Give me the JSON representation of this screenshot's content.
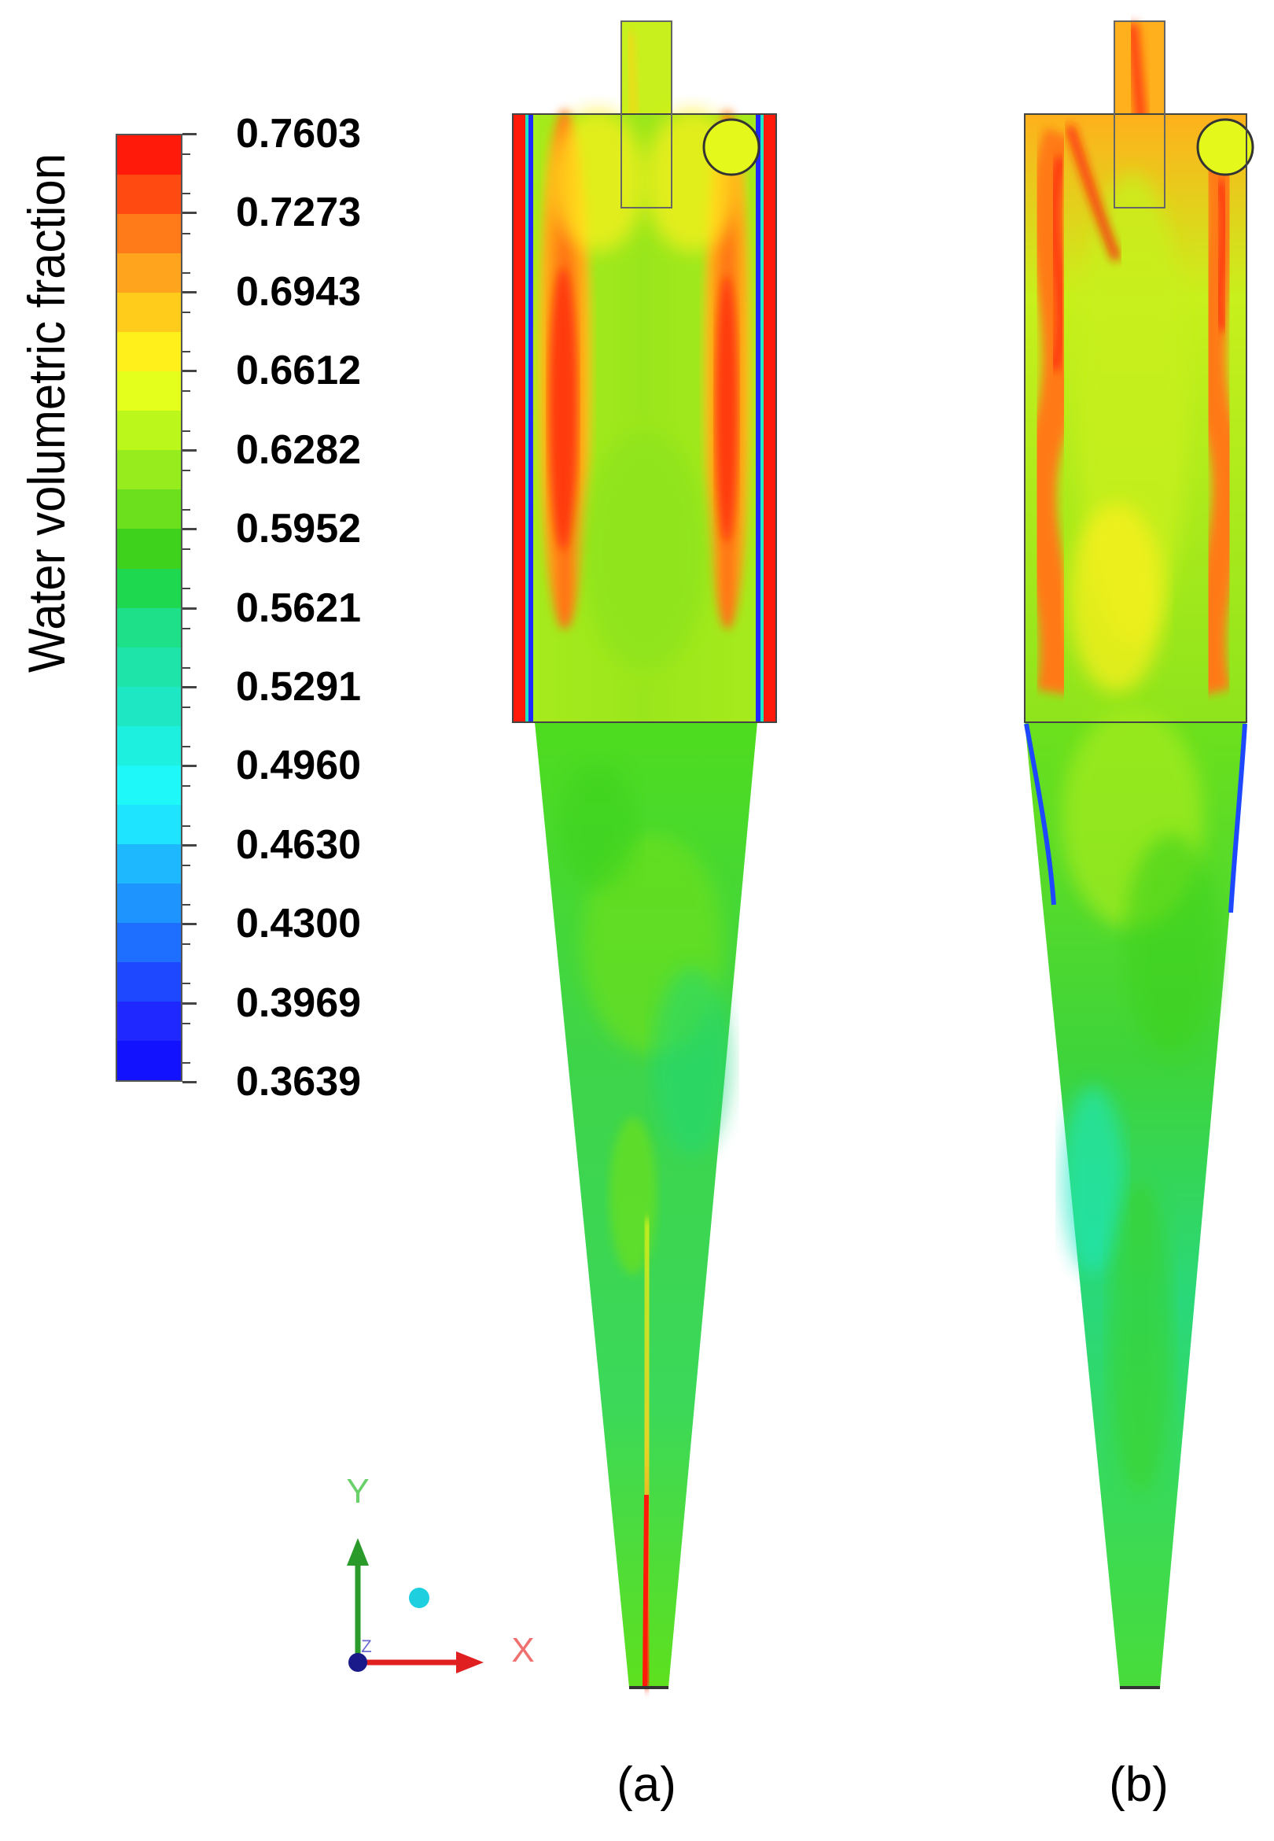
{
  "legend": {
    "title": "Water volumetric fraction",
    "labels": [
      "0.7603",
      "0.7273",
      "0.6943",
      "0.6612",
      "0.6282",
      "0.5952",
      "0.5621",
      "0.5291",
      "0.4960",
      "0.4630",
      "0.4300",
      "0.3969",
      "0.3639"
    ],
    "band_colors": [
      "#ff1a0a",
      "#ff4a12",
      "#ff7a18",
      "#ffa41c",
      "#ffcc1c",
      "#fff01c",
      "#e4ff1c",
      "#bcf71c",
      "#96ec1c",
      "#6ce01c",
      "#3ed21c",
      "#1ed850",
      "#1ee088",
      "#1ee4aa",
      "#1ee8c4",
      "#1ef0e0",
      "#1ef8f8",
      "#1ee4ff",
      "#1eb8ff",
      "#1e94ff",
      "#1e6eff",
      "#1e48ff",
      "#1e28ff",
      "#1212ff"
    ]
  },
  "axes": {
    "y_label": "Y",
    "x_label": "X",
    "z_label": "Z"
  },
  "captions": {
    "a": "(a)",
    "b": "(b)"
  }
}
